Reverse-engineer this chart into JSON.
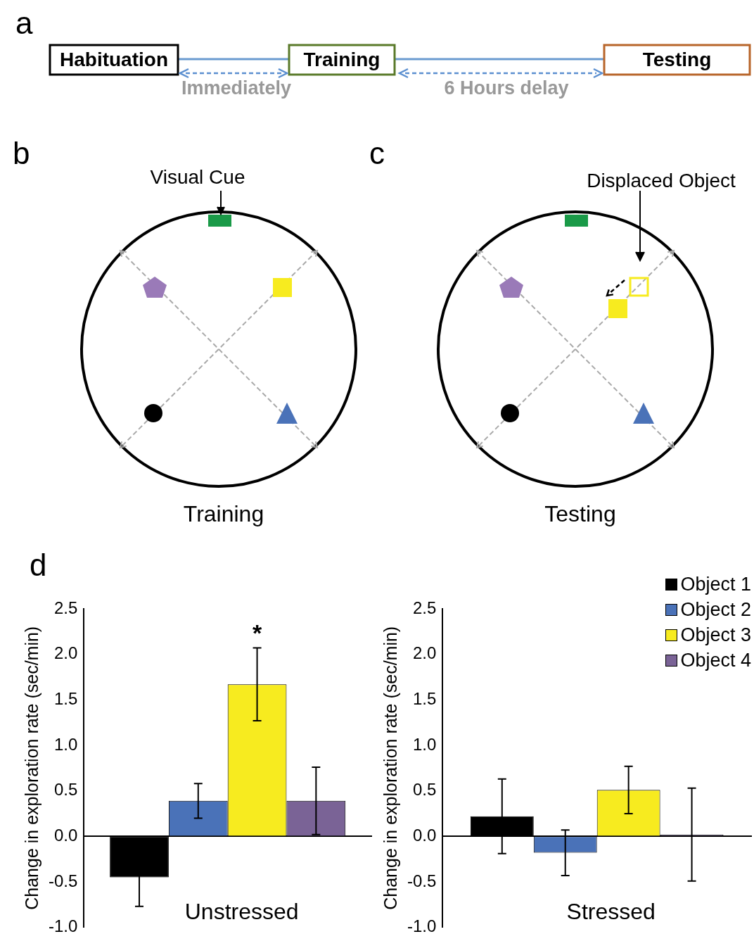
{
  "chart_data": [
    {
      "type": "other",
      "title": "a",
      "annotations": [
        "Habituation",
        "Training",
        "Testing",
        "Immediately",
        "6 Hours delay"
      ]
    },
    {
      "type": "other",
      "title": "b",
      "annotations": [
        "Visual Cue",
        "Training"
      ]
    },
    {
      "type": "other",
      "title": "c",
      "annotations": [
        "Displaced Object",
        "Testing"
      ]
    },
    {
      "type": "bar",
      "title": "d",
      "categories": [
        null
      ],
      "ylabel": "Change in exploration rate (sec/min)",
      "ylim": [
        -1,
        2.5
      ],
      "yticks": [
        {
          "value": -1,
          "label": "-1.0"
        },
        {
          "value": -0.5,
          "label": "-0.5"
        },
        {
          "value": 0,
          "label": "0.0"
        },
        {
          "value": 0.5,
          "label": "0.5"
        },
        {
          "value": 1,
          "label": "1.0"
        },
        {
          "value": 1.5,
          "label": "1.5"
        },
        {
          "value": 2,
          "label": "2.0"
        },
        {
          "value": 2.5,
          "label": "2.5"
        }
      ],
      "tick_labels": "y",
      "series": [
        {
          "color": "#000000",
          "values": [
            -0.45
          ],
          "errors": [
            0.32
          ]
        },
        {
          "color": "#4a72b8",
          "values": [
            0.39
          ],
          "errors": [
            0.19
          ]
        },
        {
          "color": "#f7eb1f",
          "values": [
            1.67
          ],
          "errors": [
            0.4
          ]
        },
        {
          "color": "#7a6396",
          "values": [
            0.39
          ],
          "errors": [
            0.37
          ]
        }
      ],
      "annotations": [
        "Unstressed",
        "*"
      ]
    },
    {
      "type": "bar",
      "categories": [
        null
      ],
      "ylabel": "Change in exploration rate (sec/min)",
      "ylim": [
        -1,
        2.5
      ],
      "yticks": [
        {
          "value": -1,
          "label": "-1.0"
        },
        {
          "value": -0.5,
          "label": "-0.5"
        },
        {
          "value": 0,
          "label": "0.0"
        },
        {
          "value": 0.5,
          "label": "0.5"
        },
        {
          "value": 1,
          "label": "1.0"
        },
        {
          "value": 1.5,
          "label": "1.5"
        },
        {
          "value": 2,
          "label": "2.0"
        },
        {
          "value": 2.5,
          "label": "2.5"
        }
      ],
      "tick_labels": "y",
      "legend": "top right",
      "series": [
        {
          "name": "Object 1",
          "color": "#000000",
          "values": [
            0.22
          ],
          "errors": [
            0.41
          ]
        },
        {
          "name": "Object 2",
          "color": "#4a72b8",
          "values": [
            -0.18
          ],
          "errors": [
            0.25
          ]
        },
        {
          "name": "Object 3",
          "color": "#f7eb1f",
          "values": [
            0.51
          ],
          "errors": [
            0.26
          ]
        },
        {
          "name": "Object 4",
          "color": "#7a6396",
          "values": [
            0.02
          ],
          "errors": [
            0.51
          ]
        }
      ],
      "annotations": [
        "Stressed"
      ]
    }
  ]
}
